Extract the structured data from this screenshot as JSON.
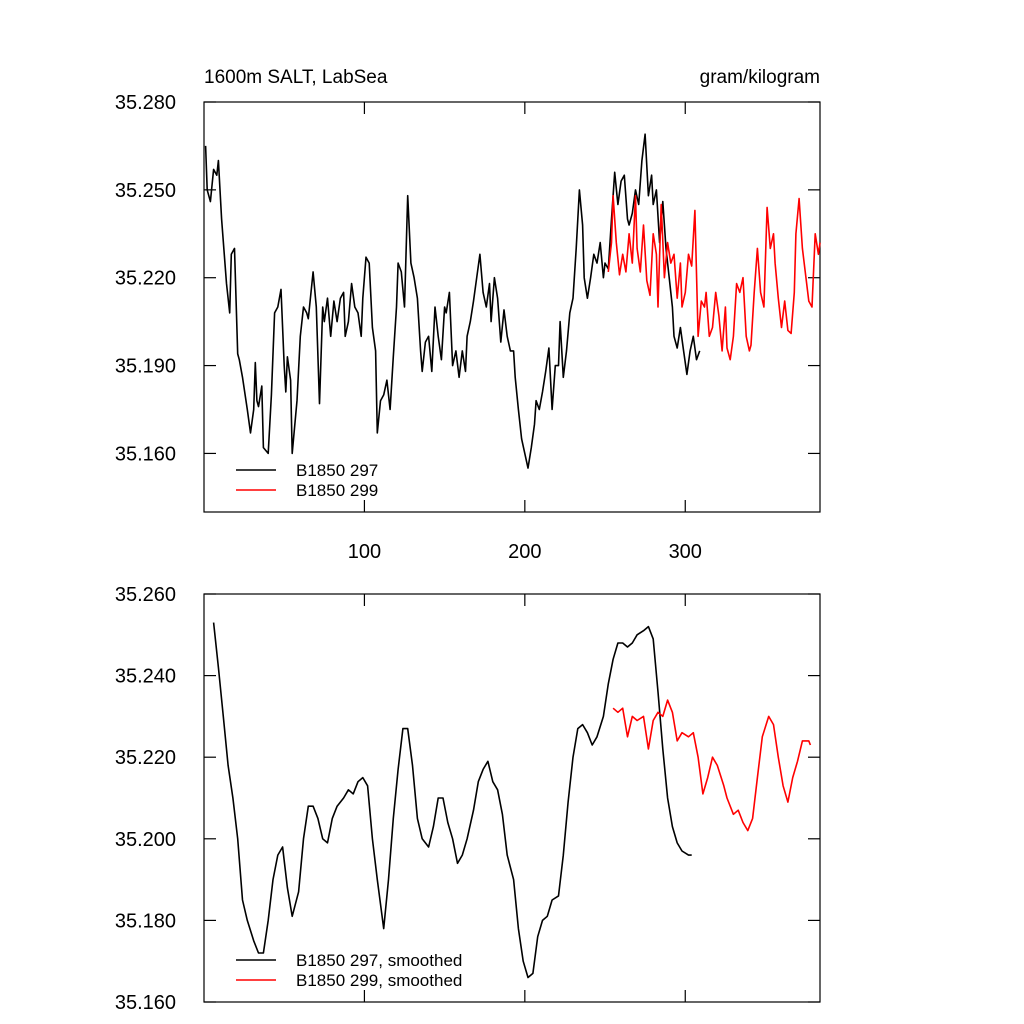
{
  "chart_data": [
    {
      "type": "line",
      "subtitle_left": "1600m SALT, LabSea",
      "subtitle_right": "gram/kilogram",
      "xlim": [
        0,
        384
      ],
      "xticks": [
        100,
        200,
        300
      ],
      "show_xtick_labels": true,
      "ylim": [
        35.14,
        35.28
      ],
      "yticks": [
        {
          "value": 35.16,
          "label": "35.160"
        },
        {
          "value": 35.19,
          "label": "35.190"
        },
        {
          "value": 35.22,
          "label": "35.220"
        },
        {
          "value": 35.25,
          "label": "35.250"
        },
        {
          "value": 35.28,
          "label": "35.280"
        }
      ],
      "legend": "lower-left",
      "series": [
        {
          "name": "B1850 297",
          "color": "#000000",
          "x": [
            1,
            2,
            4,
            6,
            8,
            9,
            11,
            14,
            16,
            17,
            19,
            21,
            22,
            24,
            27,
            29,
            31,
            32,
            33,
            34,
            36,
            37,
            40,
            42,
            44,
            46,
            48,
            50,
            51,
            52,
            54,
            55,
            58,
            60,
            62,
            64,
            65,
            68,
            70,
            72,
            74,
            75,
            77,
            79,
            81,
            83,
            85,
            87,
            88,
            90,
            92,
            94,
            96,
            98,
            99,
            101,
            103,
            105,
            107,
            108,
            110,
            112,
            114,
            116,
            118,
            120,
            121,
            123,
            125,
            127,
            129,
            131,
            133,
            135,
            136,
            138,
            140,
            142,
            144,
            146,
            148,
            150,
            151,
            153,
            155,
            157,
            159,
            161,
            163,
            164,
            166,
            168,
            170,
            172,
            174,
            176,
            178,
            179,
            181,
            183,
            185,
            187,
            189,
            191,
            193,
            194,
            196,
            198,
            200,
            202,
            204,
            206,
            207,
            209,
            211,
            213,
            215,
            217,
            219,
            221,
            222,
            224,
            226,
            228,
            230,
            232,
            234,
            236,
            237,
            239,
            241,
            243,
            245,
            247,
            249,
            250,
            252,
            254,
            256,
            258,
            260,
            262,
            264,
            265,
            267,
            269,
            271,
            273,
            275,
            277,
            279,
            280,
            282,
            284,
            286,
            288,
            290,
            292,
            293,
            295,
            297,
            299,
            301,
            303,
            305,
            307,
            309
          ],
          "values": [
            35.265,
            35.25,
            35.246,
            35.257,
            35.255,
            35.26,
            35.24,
            35.218,
            35.208,
            35.228,
            35.23,
            35.194,
            35.192,
            35.186,
            35.175,
            35.167,
            35.175,
            35.191,
            35.178,
            35.176,
            35.183,
            35.162,
            35.16,
            35.18,
            35.208,
            35.21,
            35.216,
            35.19,
            35.181,
            35.193,
            35.185,
            35.16,
            35.178,
            35.2,
            35.21,
            35.208,
            35.206,
            35.222,
            35.21,
            35.177,
            35.21,
            35.205,
            35.213,
            35.2,
            35.212,
            35.205,
            35.213,
            35.215,
            35.2,
            35.205,
            35.218,
            35.21,
            35.208,
            35.2,
            35.213,
            35.227,
            35.225,
            35.203,
            35.195,
            35.167,
            35.178,
            35.18,
            35.185,
            35.175,
            35.193,
            35.21,
            35.225,
            35.222,
            35.21,
            35.248,
            35.225,
            35.22,
            35.213,
            35.195,
            35.188,
            35.198,
            35.2,
            35.188,
            35.21,
            35.2,
            35.192,
            35.21,
            35.208,
            35.215,
            35.19,
            35.195,
            35.186,
            35.195,
            35.188,
            35.2,
            35.205,
            35.212,
            35.22,
            35.228,
            35.215,
            35.21,
            35.218,
            35.205,
            35.22,
            35.213,
            35.198,
            35.209,
            35.2,
            35.195,
            35.195,
            35.186,
            35.175,
            35.165,
            35.16,
            35.155,
            35.162,
            35.17,
            35.178,
            35.175,
            35.181,
            35.188,
            35.196,
            35.175,
            35.19,
            35.19,
            35.205,
            35.186,
            35.195,
            35.208,
            35.213,
            35.23,
            35.25,
            35.238,
            35.22,
            35.213,
            35.22,
            35.228,
            35.225,
            35.232,
            35.22,
            35.225,
            35.223,
            35.24,
            35.256,
            35.245,
            35.253,
            35.255,
            35.24,
            35.238,
            35.242,
            35.25,
            35.245,
            35.26,
            35.269,
            35.248,
            35.255,
            35.245,
            35.25,
            35.232,
            35.246,
            35.23,
            35.22,
            35.21,
            35.2,
            35.196,
            35.203,
            35.195,
            35.187,
            35.195,
            35.2,
            35.192,
            35.195
          ]
        },
        {
          "name": "B1850 299",
          "color": "#ff0000",
          "x": [
            252,
            254,
            255,
            257,
            259,
            261,
            263,
            265,
            267,
            269,
            270,
            272,
            274,
            276,
            278,
            280,
            282,
            283,
            285,
            287,
            289,
            291,
            293,
            295,
            297,
            298,
            300,
            302,
            304,
            306,
            308,
            310,
            312,
            313,
            315,
            317,
            319,
            321,
            323,
            325,
            326,
            328,
            330,
            332,
            334,
            336,
            338,
            340,
            341,
            343,
            345,
            347,
            349,
            351,
            353,
            355,
            356,
            358,
            360,
            362,
            364,
            366,
            368,
            369,
            371,
            373,
            375,
            377,
            379,
            381,
            383,
            384
          ],
          "values": [
            35.222,
            35.232,
            35.248,
            35.232,
            35.221,
            35.228,
            35.222,
            35.235,
            35.225,
            35.248,
            35.23,
            35.222,
            35.238,
            35.219,
            35.214,
            35.235,
            35.228,
            35.21,
            35.245,
            35.22,
            35.232,
            35.225,
            35.228,
            35.213,
            35.225,
            35.21,
            35.215,
            35.228,
            35.224,
            35.243,
            35.2,
            35.212,
            35.21,
            35.215,
            35.2,
            35.203,
            35.215,
            35.207,
            35.195,
            35.21,
            35.196,
            35.192,
            35.2,
            35.218,
            35.215,
            35.22,
            35.2,
            35.195,
            35.197,
            35.215,
            35.23,
            35.215,
            35.21,
            35.244,
            35.23,
            35.235,
            35.225,
            35.213,
            35.203,
            35.212,
            35.202,
            35.201,
            35.215,
            35.235,
            35.247,
            35.23,
            35.221,
            35.212,
            35.21,
            35.235,
            35.228,
            35.232
          ]
        }
      ]
    },
    {
      "type": "line",
      "xlim": [
        0,
        384
      ],
      "xticks": [
        100,
        200,
        300
      ],
      "show_xtick_labels": false,
      "ylim": [
        35.16,
        35.26
      ],
      "yticks": [
        {
          "value": 35.16,
          "label": "35.160"
        },
        {
          "value": 35.18,
          "label": "35.180"
        },
        {
          "value": 35.2,
          "label": "35.200"
        },
        {
          "value": 35.22,
          "label": "35.220"
        },
        {
          "value": 35.24,
          "label": "35.240"
        },
        {
          "value": 35.26,
          "label": "35.260"
        }
      ],
      "legend": "lower-left",
      "series": [
        {
          "name": "B1850 297, smoothed",
          "color": "#000000",
          "x": [
            6,
            9,
            12,
            15,
            18,
            21,
            24,
            27,
            31,
            34,
            37,
            40,
            43,
            46,
            49,
            52,
            55,
            59,
            62,
            65,
            68,
            71,
            74,
            77,
            80,
            83,
            87,
            90,
            93,
            96,
            99,
            102,
            105,
            108,
            112,
            115,
            118,
            121,
            124,
            127,
            130,
            133,
            136,
            140,
            143,
            146,
            149,
            152,
            155,
            158,
            161,
            164,
            168,
            171,
            174,
            177,
            180,
            183,
            186,
            189,
            193,
            196,
            199,
            202,
            205,
            208,
            211,
            214,
            217,
            221,
            224,
            227,
            230,
            233,
            236,
            239,
            242,
            245,
            249,
            252,
            255,
            258,
            261,
            264,
            267,
            270,
            274,
            277,
            280,
            283,
            286,
            289,
            292,
            295,
            298,
            302,
            304
          ],
          "values": [
            35.253,
            35.242,
            35.23,
            35.218,
            35.21,
            35.2,
            35.185,
            35.18,
            35.175,
            35.172,
            35.172,
            35.18,
            35.19,
            35.196,
            35.198,
            35.188,
            35.181,
            35.187,
            35.2,
            35.208,
            35.208,
            35.205,
            35.2,
            35.199,
            35.205,
            35.208,
            35.21,
            35.212,
            35.211,
            35.214,
            35.215,
            35.213,
            35.2,
            35.19,
            35.178,
            35.19,
            35.205,
            35.217,
            35.227,
            35.227,
            35.218,
            35.205,
            35.2,
            35.198,
            35.203,
            35.21,
            35.21,
            35.204,
            35.2,
            35.194,
            35.196,
            35.2,
            35.207,
            35.214,
            35.217,
            35.219,
            35.214,
            35.212,
            35.206,
            35.196,
            35.19,
            35.178,
            35.17,
            35.166,
            35.167,
            35.176,
            35.18,
            35.181,
            35.185,
            35.186,
            35.196,
            35.209,
            35.22,
            35.227,
            35.228,
            35.226,
            35.223,
            35.225,
            35.23,
            35.238,
            35.244,
            35.248,
            35.248,
            35.247,
            35.248,
            35.25,
            35.251,
            35.252,
            35.249,
            35.236,
            35.222,
            35.21,
            35.203,
            35.199,
            35.197,
            35.196,
            35.196
          ]
        },
        {
          "name": "B1850 299, smoothed",
          "color": "#ff0000",
          "x": [
            255,
            258,
            261,
            264,
            267,
            270,
            274,
            277,
            280,
            283,
            286,
            289,
            292,
            295,
            298,
            302,
            305,
            308,
            311,
            314,
            317,
            320,
            324,
            326,
            330,
            333,
            336,
            339,
            342,
            345,
            348,
            352,
            355,
            358,
            361,
            364,
            367,
            370,
            373,
            377,
            378
          ],
          "values": [
            35.232,
            35.231,
            35.232,
            35.225,
            35.23,
            35.229,
            35.23,
            35.222,
            35.229,
            35.231,
            35.23,
            35.234,
            35.231,
            35.224,
            35.226,
            35.225,
            35.226,
            35.22,
            35.211,
            35.215,
            35.22,
            35.218,
            35.213,
            35.21,
            35.206,
            35.207,
            35.204,
            35.202,
            35.205,
            35.215,
            35.225,
            35.23,
            35.228,
            35.22,
            35.213,
            35.209,
            35.215,
            35.219,
            35.224,
            35.224,
            35.223
          ]
        }
      ]
    }
  ]
}
